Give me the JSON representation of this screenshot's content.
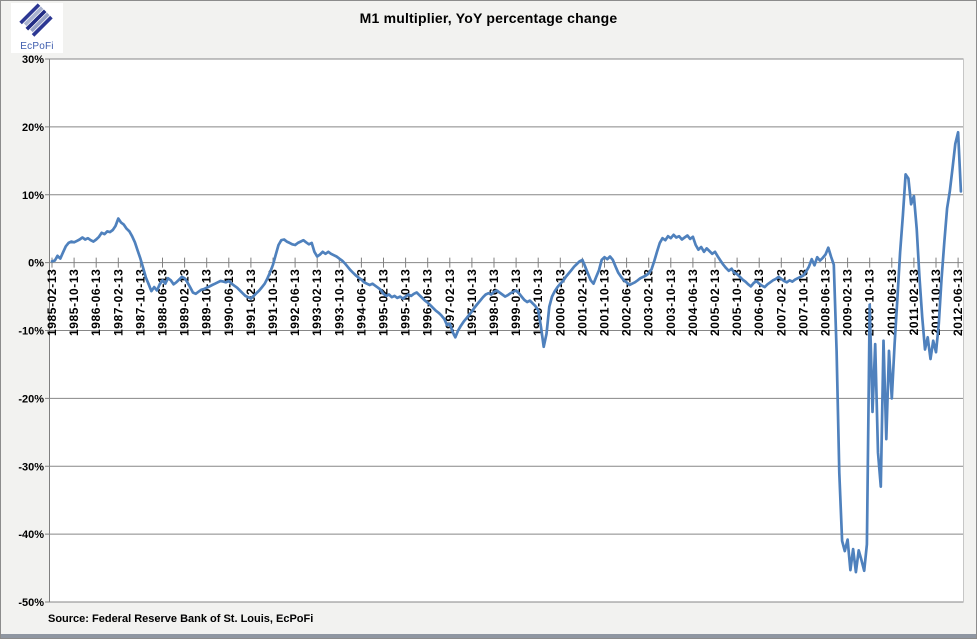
{
  "header": {
    "logo_text": "EcPoFi",
    "title": "M1 multiplier, YoY percentage change"
  },
  "footer": {
    "source": "Source: Federal Reserve Bank of St. Louis, EcPoFi"
  },
  "colors": {
    "line": "#4F81BD",
    "gridline": "#878787",
    "axis": "#808080",
    "plot_border_right": "#c6c6c6",
    "plot_bg": "#ffffff",
    "outer_bg": "#f2f2f0",
    "logo_dark_blue": "#2c3793",
    "logo_light_blue": "#a9b2cf",
    "logo_text_blue": "#3d5cad",
    "bottom_bar": "#8f96a1"
  },
  "chart_data": {
    "type": "line",
    "title": "M1 multiplier, YoY percentage change",
    "xlabel": "",
    "ylabel": "",
    "grid": "horizontal",
    "legend": "none",
    "ylim": [
      -50,
      30
    ],
    "y_ticks": [
      {
        "label": "30%",
        "value": 30
      },
      {
        "label": "20%",
        "value": 20
      },
      {
        "label": "10%",
        "value": 10
      },
      {
        "label": "0%",
        "value": 0
      },
      {
        "label": "-10%",
        "value": -10
      },
      {
        "label": "-20%",
        "value": -20
      },
      {
        "label": "-30%",
        "value": -30
      },
      {
        "label": "-40%",
        "value": -40
      },
      {
        "label": "-50%",
        "value": -50
      }
    ],
    "x_ticks_every_months": 8,
    "x_tick_labels": [
      "1985-02-13",
      "1985-10-13",
      "1986-06-13",
      "1987-02-13",
      "1987-10-13",
      "1988-06-13",
      "1989-02-13",
      "1989-10-13",
      "1990-06-13",
      "1991-02-13",
      "1991-10-13",
      "1992-06-13",
      "1993-02-13",
      "1993-10-13",
      "1994-06-13",
      "1995-02-13",
      "1995-10-13",
      "1996-06-13",
      "1997-02-13",
      "1997-10-13",
      "1998-06-13",
      "1999-02-13",
      "1999-10-13",
      "2000-06-13",
      "2001-02-13",
      "2001-10-13",
      "2002-06-13",
      "2003-02-13",
      "2003-10-13",
      "2004-06-13",
      "2005-02-13",
      "2005-10-13",
      "2006-06-13",
      "2007-02-13",
      "2007-10-13",
      "2008-06-13",
      "2009-02-13",
      "2009-10-13",
      "2010-06-13",
      "2011-02-13",
      "2011-10-13",
      "2012-06-13"
    ],
    "series": [
      {
        "name": "M1 multiplier YoY % change",
        "start": "1985-02",
        "freq": "monthly",
        "values": [
          0.2,
          0.3,
          1.0,
          0.6,
          1.5,
          2.4,
          2.9,
          3.1,
          3.0,
          3.2,
          3.4,
          3.7,
          3.4,
          3.6,
          3.3,
          3.1,
          3.4,
          3.8,
          4.4,
          4.2,
          4.6,
          4.5,
          4.8,
          5.4,
          6.5,
          5.9,
          5.6,
          5.0,
          4.6,
          3.9,
          3.0,
          1.8,
          0.6,
          -0.8,
          -2.2,
          -3.2,
          -4.2,
          -3.6,
          -4.1,
          -3.2,
          -2.6,
          -3.1,
          -2.3,
          -2.6,
          -3.2,
          -2.9,
          -2.5,
          -2.1,
          -2.3,
          -2.9,
          -3.6,
          -4.4,
          -4.6,
          -4.3,
          -4.0,
          -3.9,
          -3.7,
          -3.5,
          -3.3,
          -3.1,
          -2.9,
          -2.7,
          -2.8,
          -2.9,
          -2.7,
          -3.1,
          -3.4,
          -3.7,
          -4.1,
          -4.5,
          -4.9,
          -5.1,
          -5.3,
          -4.9,
          -4.5,
          -4.1,
          -3.6,
          -3.1,
          -2.3,
          -1.4,
          -0.3,
          1.2,
          2.6,
          3.3,
          3.4,
          3.1,
          2.9,
          2.7,
          2.6,
          2.9,
          3.1,
          3.3,
          3.0,
          2.7,
          2.9,
          1.6,
          0.9,
          1.2,
          1.6,
          1.3,
          1.6,
          1.3,
          1.1,
          0.9,
          0.6,
          0.3,
          -0.1,
          -0.6,
          -1.1,
          -1.5,
          -1.9,
          -2.2,
          -2.5,
          -2.9,
          -3.1,
          -3.3,
          -3.1,
          -3.4,
          -3.7,
          -4.0,
          -4.6,
          -4.9,
          -4.7,
          -5.1,
          -4.9,
          -5.2,
          -5.0,
          -5.3,
          -5.0,
          -4.7,
          -4.9,
          -4.6,
          -4.4,
          -4.8,
          -5.2,
          -5.6,
          -5.9,
          -6.3,
          -6.7,
          -7.1,
          -7.4,
          -7.8,
          -8.3,
          -9.2,
          -9.0,
          -10.2,
          -11.0,
          -10.0,
          -9.3,
          -8.7,
          -8.2,
          -7.7,
          -7.2,
          -6.6,
          -6.1,
          -5.6,
          -5.1,
          -4.7,
          -4.5,
          -4.7,
          -4.3,
          -4.1,
          -4.4,
          -4.7,
          -5.0,
          -4.8,
          -4.5,
          -4.3,
          -4.1,
          -4.5,
          -5.0,
          -5.5,
          -5.8,
          -5.6,
          -6.0,
          -6.4,
          -7.0,
          -9.5,
          -12.4,
          -10.5,
          -6.5,
          -5.0,
          -4.2,
          -3.6,
          -3.1,
          -2.7,
          -2.1,
          -1.6,
          -1.1,
          -0.6,
          -0.2,
          0.2,
          0.4,
          -0.6,
          -1.6,
          -2.6,
          -3.1,
          -2.1,
          -1.1,
          0.4,
          0.8,
          0.5,
          0.9,
          0.4,
          -0.6,
          -1.5,
          -2.1,
          -2.6,
          -2.9,
          -3.3,
          -3.1,
          -2.9,
          -2.6,
          -2.3,
          -2.1,
          -1.9,
          -1.6,
          -1.0,
          0.2,
          1.6,
          2.9,
          3.6,
          3.3,
          3.9,
          3.6,
          4.1,
          3.7,
          3.9,
          3.4,
          3.7,
          4.0,
          3.5,
          3.8,
          2.6,
          1.9,
          2.3,
          1.6,
          2.1,
          1.7,
          1.3,
          1.6,
          0.9,
          0.3,
          -0.3,
          -0.8,
          -1.2,
          -0.9,
          -1.5,
          -1.7,
          -2.1,
          -2.5,
          -2.8,
          -3.2,
          -3.5,
          -3.0,
          -2.7,
          -3.1,
          -3.4,
          -3.6,
          -3.2,
          -2.9,
          -2.6,
          -2.4,
          -2.1,
          -2.4,
          -2.7,
          -2.9,
          -2.6,
          -2.8,
          -2.5,
          -2.3,
          -2.1,
          -1.9,
          -1.3,
          -0.6,
          0.5,
          -0.4,
          0.8,
          0.3,
          0.7,
          1.2,
          2.2,
          0.9,
          -0.3,
          -13.0,
          -31.0,
          -41.0,
          -42.5,
          -40.8,
          -45.3,
          -42.2,
          -45.6,
          -42.4,
          -43.8,
          -45.4,
          -41.5,
          -6.2,
          -22.0,
          -12.0,
          -28.0,
          -33.0,
          -11.5,
          -26.0,
          -13.0,
          -20.0,
          -12.0,
          -5.5,
          1.5,
          7.0,
          13.0,
          12.4,
          8.6,
          9.8,
          5.0,
          -2.0,
          -8.0,
          -12.8,
          -11.0,
          -14.2,
          -11.5,
          -13.2,
          -9.0,
          -2.5,
          3.0,
          8.0,
          10.5,
          14.0,
          17.5,
          19.2,
          10.5
        ]
      }
    ]
  }
}
